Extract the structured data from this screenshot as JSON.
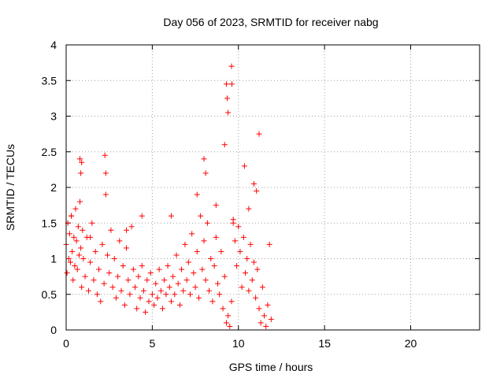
{
  "chart_data": {
    "type": "scatter",
    "title": "Day 056 of 2023, SRMTID for receiver nabg",
    "xlabel": "GPS time / hours",
    "ylabel": "SRMTID / TECUs",
    "xlim": [
      0,
      24
    ],
    "ylim": [
      0,
      4
    ],
    "xticks": [
      0,
      5,
      10,
      15,
      20
    ],
    "yticks": [
      0,
      0.5,
      1,
      1.5,
      2,
      2.5,
      3,
      3.5,
      4
    ],
    "xtick_labels": [
      "0",
      "5",
      "10",
      "15",
      "20"
    ],
    "ytick_labels": [
      "0",
      "0.5",
      "1",
      "1.5",
      "2",
      "2.5",
      "3",
      "3.5",
      "4"
    ],
    "grid": true,
    "marker": "+",
    "series": [
      {
        "name": "SRMTID",
        "color": "#ff0000",
        "x": [
          0.0,
          0.05,
          0.1,
          0.15,
          0.2,
          0.25,
          0.3,
          0.35,
          0.4,
          0.45,
          0.5,
          0.55,
          0.6,
          0.65,
          0.7,
          0.75,
          0.8,
          0.85,
          0.9,
          0.95,
          1.0,
          1.1,
          1.2,
          1.3,
          1.4,
          1.5,
          1.6,
          1.7,
          1.8,
          1.9,
          2.0,
          2.1,
          2.2,
          2.3,
          2.4,
          2.5,
          2.6,
          2.7,
          2.8,
          2.9,
          3.0,
          3.1,
          3.2,
          3.3,
          3.4,
          3.5,
          3.6,
          3.7,
          3.8,
          3.9,
          4.0,
          4.1,
          4.2,
          4.3,
          4.4,
          4.5,
          4.6,
          4.7,
          4.8,
          4.9,
          5.0,
          5.1,
          5.2,
          5.3,
          5.4,
          5.5,
          5.6,
          5.7,
          5.8,
          5.9,
          6.0,
          6.1,
          6.2,
          6.3,
          6.4,
          6.5,
          6.6,
          6.7,
          6.8,
          6.9,
          7.0,
          7.1,
          7.2,
          7.3,
          7.4,
          7.5,
          7.6,
          7.7,
          7.8,
          7.9,
          8.0,
          8.1,
          8.2,
          8.3,
          8.4,
          8.5,
          8.6,
          8.7,
          8.8,
          8.9,
          9.0,
          9.1,
          9.2,
          9.3,
          9.4,
          9.5,
          9.6,
          9.7,
          9.8,
          9.9,
          10.0,
          10.1,
          10.2,
          10.3,
          10.4,
          10.5,
          10.6,
          10.7,
          10.8,
          10.9,
          11.0,
          11.1,
          11.2,
          11.3,
          11.4,
          11.5,
          11.6,
          11.7,
          11.8,
          11.9,
          0.8,
          0.85,
          0.9,
          2.25,
          2.3,
          9.6,
          9.62,
          9.3,
          9.35,
          9.4,
          9.2,
          11.2,
          10.35,
          8.0,
          8.1,
          10.9,
          11.05,
          0.3,
          1.4,
          3.5,
          4.4,
          6.1,
          7.6,
          8.7,
          9.7,
          10.6
        ],
        "y": [
          1.2,
          0.8,
          1.5,
          1.0,
          1.35,
          0.95,
          1.6,
          1.1,
          0.7,
          1.3,
          0.9,
          1.7,
          1.25,
          0.85,
          1.45,
          1.05,
          1.8,
          1.15,
          0.6,
          1.4,
          1.0,
          0.75,
          1.3,
          0.55,
          0.95,
          1.5,
          0.7,
          1.1,
          0.5,
          0.85,
          0.4,
          1.2,
          0.65,
          1.9,
          1.05,
          0.8,
          1.4,
          0.6,
          1.0,
          0.45,
          0.75,
          1.25,
          0.55,
          0.9,
          0.35,
          1.15,
          0.7,
          0.5,
          1.45,
          0.85,
          0.6,
          0.3,
          0.75,
          0.45,
          0.9,
          0.55,
          0.25,
          0.7,
          0.4,
          0.8,
          0.5,
          0.35,
          0.65,
          0.45,
          0.85,
          0.55,
          0.3,
          0.7,
          0.5,
          0.9,
          0.6,
          0.4,
          0.75,
          0.5,
          1.05,
          0.65,
          0.35,
          0.85,
          0.55,
          1.2,
          0.7,
          0.95,
          0.5,
          1.35,
          0.8,
          0.6,
          1.1,
          0.45,
          1.6,
          0.85,
          1.25,
          0.7,
          1.5,
          0.55,
          1.0,
          0.4,
          0.9,
          1.3,
          0.65,
          0.5,
          1.1,
          0.3,
          0.75,
          0.1,
          0.2,
          0.05,
          0.4,
          1.5,
          1.25,
          0.9,
          1.45,
          1.1,
          0.6,
          1.3,
          0.8,
          1.0,
          0.55,
          1.2,
          0.7,
          0.95,
          0.45,
          0.85,
          0.3,
          0.1,
          0.6,
          0.2,
          0.05,
          0.35,
          1.2,
          0.15,
          2.4,
          2.2,
          2.35,
          2.45,
          2.2,
          3.7,
          3.45,
          3.45,
          3.25,
          3.05,
          2.6,
          2.75,
          2.3,
          2.4,
          2.2,
          2.05,
          1.95,
          1.6,
          1.3,
          1.4,
          1.6,
          1.6,
          1.9,
          1.75,
          1.55,
          1.7
        ]
      }
    ]
  }
}
